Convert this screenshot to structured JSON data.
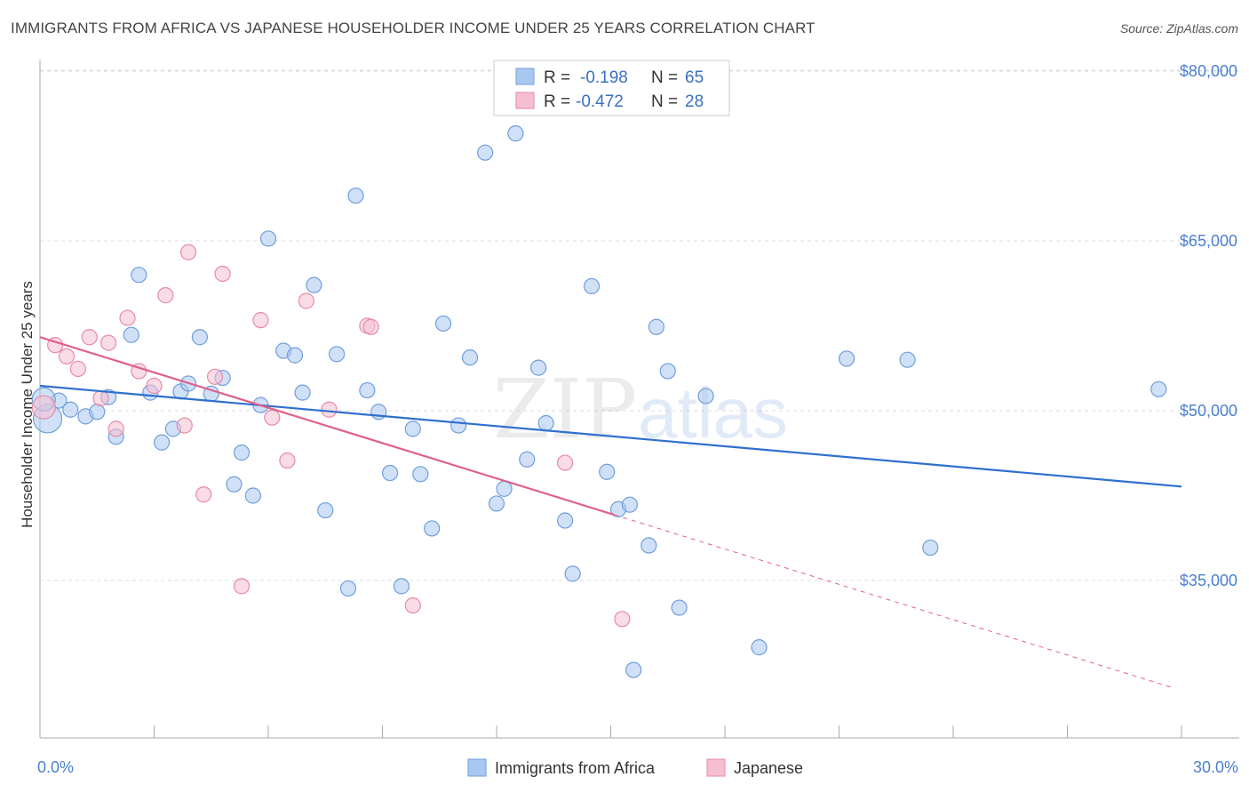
{
  "header": {
    "title": "IMMIGRANTS FROM AFRICA VS JAPANESE HOUSEHOLDER INCOME UNDER 25 YEARS CORRELATION CHART",
    "source": "Source: ZipAtlas.com"
  },
  "legend_box": {
    "row1": {
      "r_label": "R =",
      "r_value": "-0.198",
      "n_label": "N =",
      "n_value": "65"
    },
    "row2": {
      "r_label": "R =",
      "r_value": "-0.472",
      "n_label": "N =",
      "n_value": "28"
    }
  },
  "watermark": {
    "part1": "ZIP",
    "part2": "atlas"
  },
  "colors": {
    "africa_fill": "#a9c8f0",
    "africa_stroke": "#6f9edb",
    "africa_line": "#2f6fcf",
    "japanese_fill": "#f6bfd0",
    "japanese_stroke": "#e68aa8",
    "japanese_line": "#e0608a",
    "grid": "#dddddd",
    "tick_text": "#4a7fd0"
  },
  "chart_data": {
    "type": "scatter",
    "title": "IMMIGRANTS FROM AFRICA VS JAPANESE HOUSEHOLDER INCOME UNDER 25 YEARS CORRELATION CHART",
    "xlabel": "",
    "ylabel": "Householder Income Under 25 years",
    "xlim": [
      0,
      30
    ],
    "ylim": [
      20000,
      83500
    ],
    "x_tick_labels": [
      {
        "value": 0,
        "label": "0.0%"
      },
      {
        "value": 30,
        "label": "30.0%"
      }
    ],
    "y_ticks": [
      {
        "value": 35000,
        "label": "$35,000"
      },
      {
        "value": 50000,
        "label": "$50,000"
      },
      {
        "value": 65000,
        "label": "$65,000"
      },
      {
        "value": 80000,
        "label": "$80,000"
      }
    ],
    "grid": true,
    "legend_position": "bottom",
    "series": [
      {
        "name": "Immigrants from Africa",
        "trend": {
          "x": [
            0,
            30
          ],
          "y": [
            52200,
            43300
          ]
        },
        "points": [
          [
            0.2,
            49300
          ],
          [
            0.5,
            50900
          ],
          [
            0.8,
            50100
          ],
          [
            1.2,
            49500
          ],
          [
            1.5,
            49900
          ],
          [
            1.8,
            51200
          ],
          [
            2.0,
            47700
          ],
          [
            2.4,
            56700
          ],
          [
            2.6,
            62000
          ],
          [
            2.9,
            51600
          ],
          [
            3.2,
            47200
          ],
          [
            3.5,
            48400
          ],
          [
            3.7,
            51700
          ],
          [
            3.9,
            52400
          ],
          [
            4.2,
            56500
          ],
          [
            4.5,
            51500
          ],
          [
            4.8,
            52900
          ],
          [
            5.1,
            43500
          ],
          [
            5.3,
            46300
          ],
          [
            5.6,
            42500
          ],
          [
            5.8,
            50500
          ],
          [
            6.0,
            65200
          ],
          [
            6.4,
            55300
          ],
          [
            6.7,
            54900
          ],
          [
            6.9,
            51600
          ],
          [
            7.2,
            61100
          ],
          [
            7.5,
            41200
          ],
          [
            7.8,
            55000
          ],
          [
            8.1,
            34300
          ],
          [
            8.3,
            69000
          ],
          [
            8.6,
            51800
          ],
          [
            8.9,
            49900
          ],
          [
            9.2,
            44500
          ],
          [
            9.5,
            34500
          ],
          [
            9.8,
            48400
          ],
          [
            10.0,
            44400
          ],
          [
            10.3,
            39600
          ],
          [
            10.6,
            57700
          ],
          [
            11.0,
            48700
          ],
          [
            11.3,
            54700
          ],
          [
            11.7,
            72800
          ],
          [
            12.0,
            41800
          ],
          [
            12.2,
            43100
          ],
          [
            12.5,
            74500
          ],
          [
            12.8,
            45700
          ],
          [
            13.1,
            53800
          ],
          [
            13.3,
            48900
          ],
          [
            13.8,
            40300
          ],
          [
            14.0,
            35600
          ],
          [
            14.5,
            61000
          ],
          [
            14.9,
            44600
          ],
          [
            15.2,
            41300
          ],
          [
            15.5,
            41700
          ],
          [
            15.6,
            27100
          ],
          [
            16.0,
            38100
          ],
          [
            16.2,
            57400
          ],
          [
            16.5,
            53500
          ],
          [
            16.8,
            32600
          ],
          [
            17.5,
            51300
          ],
          [
            18.9,
            29100
          ],
          [
            21.2,
            54600
          ],
          [
            22.8,
            54500
          ],
          [
            23.4,
            37900
          ],
          [
            29.4,
            51900
          ],
          [
            0.1,
            51000
          ]
        ]
      },
      {
        "name": "Japanese",
        "trend": {
          "x": [
            0,
            15.1
          ],
          "y": [
            56500,
            40800
          ]
        },
        "trend_dashed": {
          "x": [
            15.1,
            29.8
          ],
          "y": [
            40800,
            25500
          ]
        },
        "points": [
          [
            0.1,
            50300
          ],
          [
            0.4,
            55800
          ],
          [
            0.7,
            54800
          ],
          [
            1.0,
            53700
          ],
          [
            1.3,
            56500
          ],
          [
            1.6,
            51100
          ],
          [
            1.8,
            56000
          ],
          [
            2.0,
            48400
          ],
          [
            2.3,
            58200
          ],
          [
            2.6,
            53500
          ],
          [
            3.0,
            52200
          ],
          [
            3.3,
            60200
          ],
          [
            3.8,
            48700
          ],
          [
            3.9,
            64000
          ],
          [
            4.3,
            42600
          ],
          [
            4.6,
            53000
          ],
          [
            4.8,
            62100
          ],
          [
            5.3,
            34500
          ],
          [
            5.8,
            58000
          ],
          [
            6.1,
            49400
          ],
          [
            6.5,
            45600
          ],
          [
            7.0,
            59700
          ],
          [
            7.6,
            50100
          ],
          [
            8.6,
            57500
          ],
          [
            8.7,
            57400
          ],
          [
            9.8,
            32800
          ],
          [
            13.8,
            45400
          ],
          [
            15.3,
            31600
          ]
        ]
      }
    ]
  },
  "bottom_legend": {
    "africa": "Immigrants from Africa",
    "japanese": "Japanese"
  }
}
